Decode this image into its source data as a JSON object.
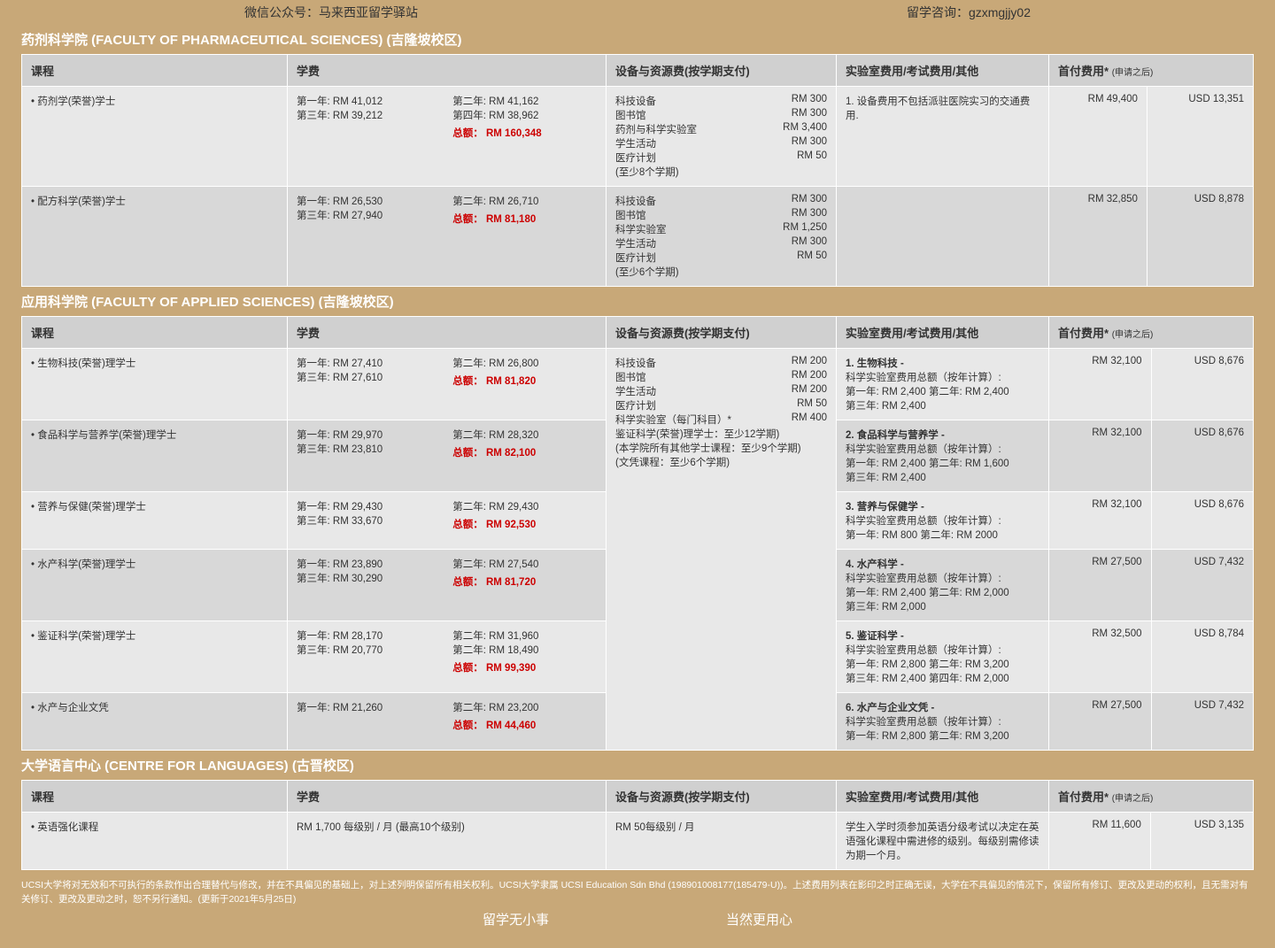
{
  "topbar": {
    "wechat": "微信公众号：马来西亚留学驿站",
    "consult": "留学咨询：gzxmgjjy02"
  },
  "headers": {
    "course": "课程",
    "fee": "学费",
    "equip": "设备与资源费(按学期支付)",
    "lab": "实验室费用/考试费用/其他",
    "first": "首付费用*",
    "first_sub": "(申请之后)"
  },
  "sec1": {
    "title": "药剂科学院 (FACULTY OF PHARMACEUTICAL SCIENCES) (吉隆坡校区)",
    "rows": [
      {
        "name": "• 药剂学(荣誉)学士",
        "y1": "第一年: RM 41,012",
        "y2": "第二年: RM 41,162",
        "y3": "第三年: RM 39,212",
        "y4": "第四年: RM 38,962",
        "total": "总额：  RM 160,348",
        "equip": [
          [
            "科技设备",
            "RM   300"
          ],
          [
            "图书馆",
            "RM   300"
          ],
          [
            "药剂与科学实验室",
            "RM 3,400"
          ],
          [
            "学生活动",
            "RM   300"
          ],
          [
            "医疗计划",
            "RM    50"
          ],
          [
            "(至少8个学期)",
            ""
          ]
        ],
        "lab": "1. 设备费用不包括派驻医院实习的交通费用.",
        "rm": "RM 49,400",
        "usd": "USD 13,351"
      },
      {
        "name": "• 配方科学(荣誉)学士",
        "y1": "第一年: RM 26,530",
        "y2": "第二年: RM 26,710",
        "y3": "第三年: RM 27,940",
        "y4": "",
        "total": "总额：  RM 81,180",
        "equip": [
          [
            "科技设备",
            "RM   300"
          ],
          [
            "图书馆",
            "RM   300"
          ],
          [
            "科学实验室",
            "RM 1,250"
          ],
          [
            "学生活动",
            "RM   300"
          ],
          [
            "医疗计划",
            "RM    50"
          ],
          [
            "(至少6个学期)",
            ""
          ]
        ],
        "lab": "",
        "rm": "RM 32,850",
        "usd": "USD 8,878"
      }
    ]
  },
  "sec2": {
    "title": "应用科学院 (FACULTY OF APPLIED SCIENCES) (吉隆坡校区)",
    "equip_shared": [
      [
        "科技设备",
        "RM   200"
      ],
      [
        "图书馆",
        "RM   200"
      ],
      [
        "学生活动",
        "RM   200"
      ],
      [
        "医疗计划",
        "RM    50"
      ],
      [
        "科学实验室（每门科目）*",
        "RM   400"
      ],
      [
        "",
        ""
      ],
      [
        "鉴证科学(荣誉)理学士：至少12学期)",
        ""
      ],
      [
        "",
        ""
      ],
      [
        "(本学院所有其他学士课程：至少9个学期)",
        ""
      ],
      [
        "",
        ""
      ],
      [
        "(文凭课程：至少6个学期)",
        ""
      ]
    ],
    "rows": [
      {
        "name": "• 生物科技(荣誉)理学士",
        "y1": "第一年: RM 27,410",
        "y2": "第二年: RM 26,800",
        "y3": "第三年: RM 27,610",
        "y4": "",
        "total": "总额：  RM 81,820",
        "lab": "1. 生物科技 -\n科学实验室费用总额（按年计算）:\n第一年: RM 2,400    第二年: RM 2,400\n第三年: RM 2,400",
        "rm": "RM 32,100",
        "usd": "USD  8,676"
      },
      {
        "name": "• 食品科学与营养学(荣誉)理学士",
        "y1": "第一年: RM 29,970",
        "y2": "第二年: RM 28,320",
        "y3": "第三年: RM 23,810",
        "y4": "",
        "total": "总额：  RM 82,100",
        "lab": "2. 食品科学与营养学 -\n科学实验室费用总额（按年计算）:\n第一年: RM 2,400    第二年: RM 1,600\n第三年: RM 2,400",
        "rm": "RM 32,100",
        "usd": "USD  8,676"
      },
      {
        "name": "• 营养与保健(荣誉)理学士",
        "y1": "第一年: RM 29,430",
        "y2": "第二年: RM 29,430",
        "y3": "第三年: RM 33,670",
        "y4": "",
        "total": "总额：  RM 92,530",
        "lab": "3. 营养与保健学 -\n科学实验室费用总额（按年计算）:\n第一年: RM 800       第二年: RM 2000",
        "rm": "RM 32,100",
        "usd": "USD  8,676"
      },
      {
        "name": "• 水产科学(荣誉)理学士",
        "y1": "第一年: RM 23,890",
        "y2": "第二年: RM 27,540",
        "y3": "第三年: RM 30,290",
        "y4": "",
        "total": "总额：  RM 81,720",
        "lab": "4. 水产科学 -\n科学实验室费用总额（按年计算）:\n第一年: RM 2,400    第二年: RM 2,000\n第三年: RM 2,000",
        "rm": "RM 27,500",
        "usd": "USD  7,432"
      },
      {
        "name": "• 鉴证科学(荣誉)理学士",
        "y1": "第一年: RM 28,170",
        "y2": "第二年: RM 31,960",
        "y3": "第三年: RM 20,770",
        "y4": "第二年: RM 18,490",
        "total": "总额：  RM 99,390",
        "lab": "5. 鉴证科学 -\n科学实验室费用总额（按年计算）:\n第一年: RM 2,800    第二年: RM 3,200\n第三年: RM 2,400    第四年: RM 2,000",
        "rm": "RM 32,500",
        "usd": "USD  8,784"
      },
      {
        "name": "• 水产与企业文凭",
        "y1": "第一年: RM 21,260",
        "y2": "第二年: RM 23,200",
        "y3": "",
        "y4": "",
        "total": "总额：  RM 44,460",
        "lab": "6. 水产与企业文凭 -\n科学实验室费用总额（按年计算）:\n第一年: RM 2,800      第二年: RM 3,200",
        "rm": "RM 27,500",
        "usd": "USD  7,432"
      }
    ]
  },
  "sec3": {
    "title": "大学语言中心 (CENTRE FOR LANGUAGES) (古晋校区)",
    "rows": [
      {
        "name": "• 英语强化课程",
        "fee": "RM 1,700 每级别 / 月 (最高10个级别)",
        "equip": "RM 50每级别 / 月",
        "lab": "学生入学时须参加英语分级考试以决定在英语强化课程中需进修的级别。每级别需修读为期一个月。",
        "rm": "RM 11,600",
        "usd": "USD  3,135"
      }
    ]
  },
  "footer": {
    "text": "UCSI大学将对无效和不可执行的条款作出合理替代与修改，并在不具偏见的基础上，对上述列明保留所有相关权利。UCSI大学隶属 UCSI Education Sdn Bhd (198901008177(185479-U))。上述费用列表在影印之时正确无误，大学在不具偏见的情况下，保留所有修订、更改及更动的权利，且无需对有关修订、更改及更动之时，恕不另行通知。(更新于2021年5月25日)",
    "left": "留学无小事",
    "right": "当然更用心"
  }
}
